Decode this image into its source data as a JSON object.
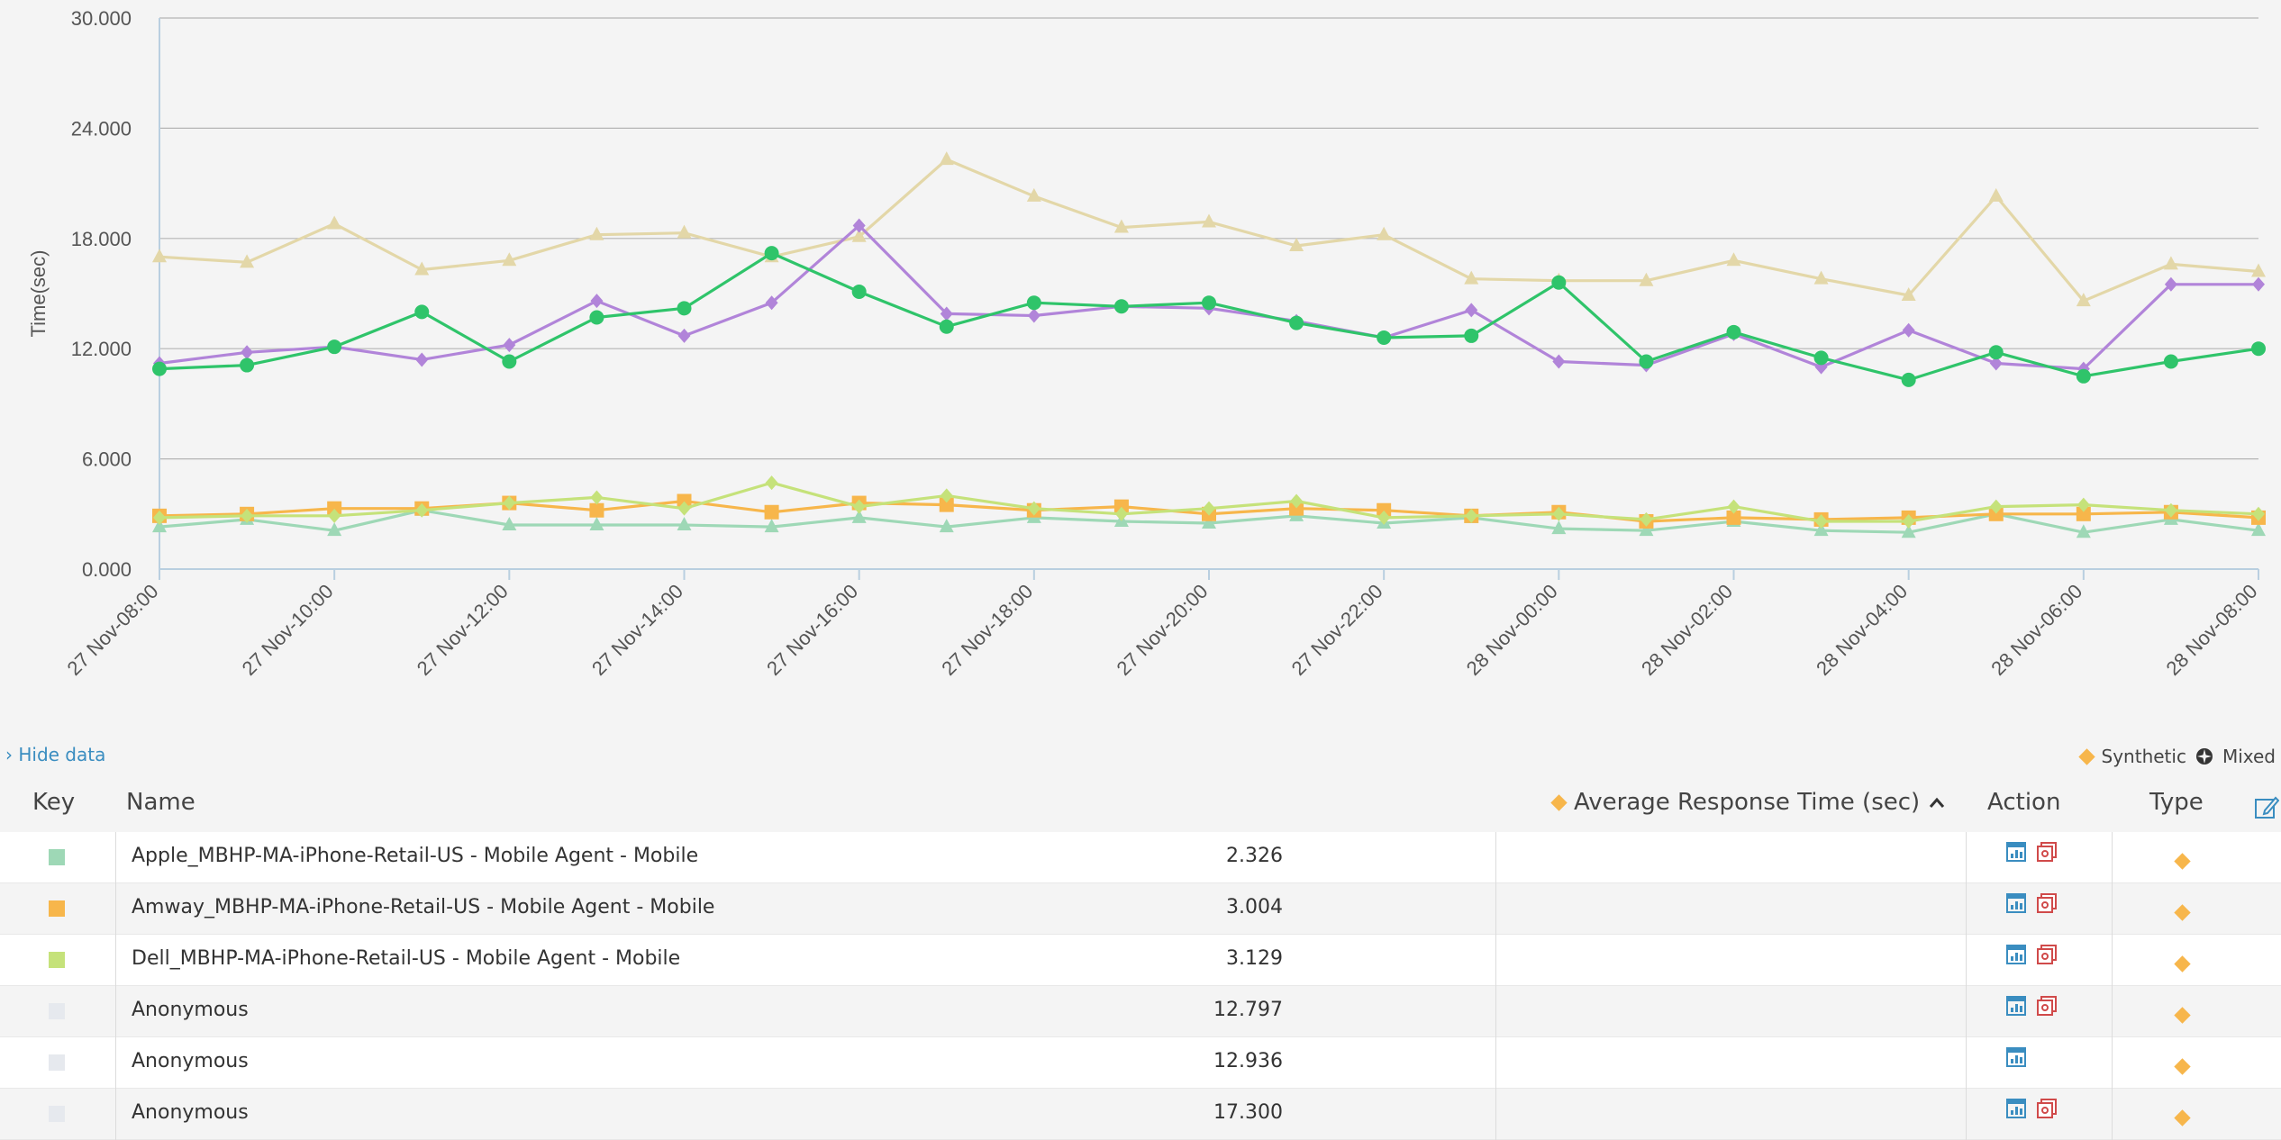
{
  "chart_data": {
    "type": "line",
    "ylabel": "Time(sec)",
    "ylim": [
      0,
      30
    ],
    "yticks": [
      "0.000",
      "6.000",
      "12.000",
      "18.000",
      "24.000",
      "30.000"
    ],
    "x": [
      "27 Nov-08:00",
      "27 Nov-09:00",
      "27 Nov-10:00",
      "27 Nov-11:00",
      "27 Nov-12:00",
      "27 Nov-13:00",
      "27 Nov-14:00",
      "27 Nov-15:00",
      "27 Nov-16:00",
      "27 Nov-17:00",
      "27 Nov-18:00",
      "27 Nov-19:00",
      "27 Nov-20:00",
      "27 Nov-21:00",
      "27 Nov-22:00",
      "27 Nov-23:00",
      "28 Nov-00:00",
      "28 Nov-01:00",
      "28 Nov-02:00",
      "28 Nov-03:00",
      "28 Nov-04:00",
      "28 Nov-05:00",
      "28 Nov-06:00",
      "28 Nov-07:00",
      "28 Nov-08:00"
    ],
    "xticks": [
      "27 Nov-08:00",
      "27 Nov-10:00",
      "27 Nov-12:00",
      "27 Nov-14:00",
      "27 Nov-16:00",
      "27 Nov-18:00",
      "27 Nov-20:00",
      "27 Nov-22:00",
      "28 Nov-00:00",
      "28 Nov-02:00",
      "28 Nov-04:00",
      "28 Nov-06:00",
      "28 Nov-08:00"
    ],
    "grid": true,
    "series": [
      {
        "color": "#e3d7a8",
        "marker": "triangle",
        "values": [
          17.0,
          16.7,
          18.8,
          16.3,
          16.8,
          18.2,
          18.3,
          17.0,
          18.1,
          22.3,
          20.3,
          18.6,
          18.9,
          17.6,
          18.2,
          15.8,
          15.7,
          15.7,
          16.8,
          15.8,
          14.9,
          20.3,
          14.6,
          16.6,
          16.2
        ]
      },
      {
        "color": "#b184d9",
        "marker": "diamond",
        "values": [
          11.2,
          11.8,
          12.1,
          11.4,
          12.2,
          14.6,
          12.7,
          14.5,
          18.7,
          13.9,
          13.8,
          14.3,
          14.2,
          13.5,
          12.6,
          14.1,
          11.3,
          11.1,
          12.8,
          11.0,
          13.0,
          11.2,
          10.9,
          15.5,
          15.5
        ]
      },
      {
        "color": "#2fc46a",
        "marker": "circle",
        "values": [
          10.9,
          11.1,
          12.1,
          14.0,
          11.3,
          13.7,
          14.2,
          17.2,
          15.1,
          13.2,
          14.5,
          14.3,
          14.5,
          13.4,
          12.6,
          12.7,
          15.6,
          11.3,
          12.9,
          11.5,
          10.3,
          11.8,
          10.5,
          11.3,
          12.0
        ]
      },
      {
        "color": "#9ed8b6",
        "marker": "triangle",
        "values": [
          2.3,
          2.7,
          2.1,
          3.2,
          2.4,
          2.4,
          2.4,
          2.3,
          2.8,
          2.3,
          2.8,
          2.6,
          2.5,
          2.9,
          2.5,
          2.8,
          2.2,
          2.1,
          2.6,
          2.1,
          2.0,
          3.0,
          2.0,
          2.7,
          2.1
        ]
      },
      {
        "color": "#f7b64b",
        "marker": "square",
        "values": [
          2.9,
          3.0,
          3.3,
          3.3,
          3.6,
          3.2,
          3.7,
          3.1,
          3.6,
          3.5,
          3.2,
          3.4,
          3.0,
          3.3,
          3.2,
          2.9,
          3.1,
          2.6,
          2.8,
          2.7,
          2.8,
          3.0,
          3.0,
          3.1,
          2.8
        ]
      },
      {
        "color": "#c5e27a",
        "marker": "diamond",
        "values": [
          2.8,
          2.9,
          2.9,
          3.2,
          3.6,
          3.9,
          3.3,
          4.7,
          3.4,
          4.0,
          3.3,
          3.0,
          3.3,
          3.7,
          2.8,
          2.9,
          3.0,
          2.7,
          3.4,
          2.6,
          2.6,
          3.4,
          3.5,
          3.2,
          3.0
        ]
      }
    ]
  },
  "controls": {
    "hide_data": "› Hide data"
  },
  "legend": {
    "synthetic": "Synthetic",
    "mixed": "Mixed",
    "synthetic_icon": "diamond-icon",
    "mixed_icon": "mixed-icon"
  },
  "table": {
    "headers": {
      "key": "Key",
      "name": "Name",
      "avg": "Average Response Time (sec)",
      "action": "Action",
      "type": "Type"
    },
    "rows": [
      {
        "name": "Apple_MBHP-MA-iPhone-Retail-US - Mobile Agent - Mobile",
        "value": "2.326",
        "key_color": "#9ed8b6",
        "actions": 2
      },
      {
        "name": "Amway_MBHP-MA-iPhone-Retail-US - Mobile Agent - Mobile",
        "value": "3.004",
        "key_color": "#f7b64b",
        "actions": 2
      },
      {
        "name": "Dell_MBHP-MA-iPhone-Retail-US - Mobile Agent - Mobile",
        "value": "3.129",
        "key_color": "#c5e27a",
        "actions": 2
      },
      {
        "name": "Anonymous",
        "value": "12.797",
        "key_color": "#e6e9ee",
        "actions": 2
      },
      {
        "name": "Anonymous",
        "value": "12.936",
        "key_color": "#e6e9ee",
        "actions": 1
      },
      {
        "name": "Anonymous",
        "value": "17.300",
        "key_color": "#e6e9ee",
        "actions": 2
      }
    ]
  }
}
